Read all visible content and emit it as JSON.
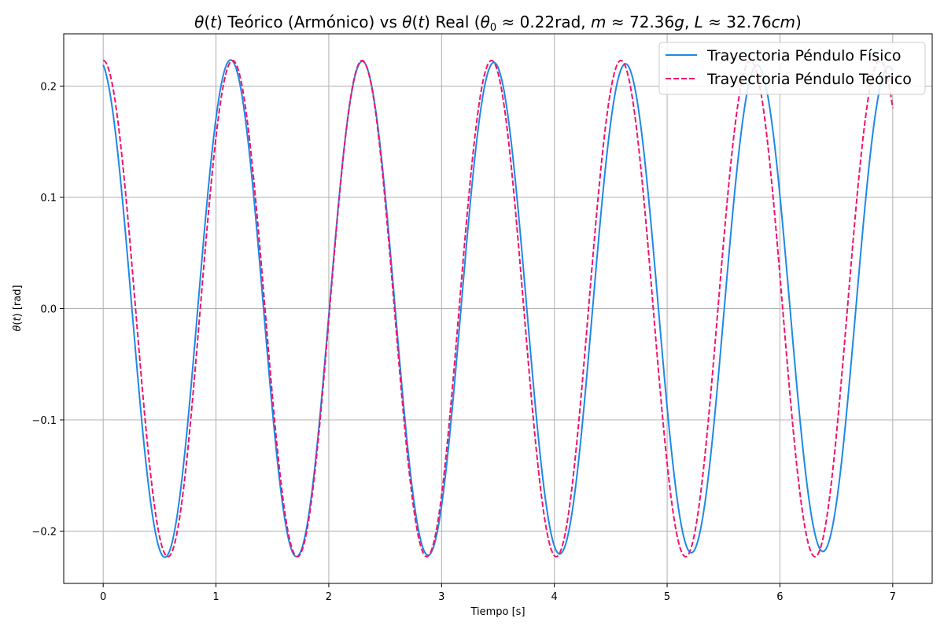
{
  "chart_data": {
    "type": "line",
    "title_parts": {
      "p1": "θ",
      "p2": "(",
      "p3": "t",
      "p4": ") Teórico (Armónico) vs ",
      "p5": "θ",
      "p6": "(",
      "p7": "t",
      "p8": ") Real (",
      "p9": "θ",
      "p10": "0",
      "p11": " ≈ 0.22rad, ",
      "p12": "m",
      "p13": " ≈ 72.36",
      "p14": "g",
      "p15": ", ",
      "p16": "L",
      "p17": " ≈ 32.76",
      "p18": "cm",
      "p19": ")"
    },
    "xlabel": "Tiempo [s]",
    "ylabel_parts": {
      "p1": "θ",
      "p2": "(",
      "p3": "t",
      "p4": ") [rad]"
    },
    "xlim": [
      -0.35,
      7.35
    ],
    "ylim": [
      -0.247,
      0.247
    ],
    "x_ticks": [
      0,
      1,
      2,
      3,
      4,
      5,
      6,
      7
    ],
    "x_tick_labels": [
      "0",
      "1",
      "2",
      "3",
      "4",
      "5",
      "6",
      "7"
    ],
    "y_ticks": [
      -0.2,
      -0.1,
      0.0,
      0.1,
      0.2
    ],
    "y_tick_labels": [
      "−0.2",
      "−0.1",
      "0.0",
      "0.1",
      "0.2"
    ],
    "grid": true,
    "legend_position": "top-right",
    "series": [
      {
        "name": "Trayectoria Péndulo Físico",
        "color": "#1f88e5",
        "style": "solid",
        "model": "damped_cosine",
        "amplitude": 0.2235,
        "period_s": 1.167,
        "t_max_peak_s": 1.13,
        "decay_per_s": 0.0045,
        "t_range": [
          0,
          7
        ]
      },
      {
        "name": "Trayectoria Péndulo Teórico",
        "color": "#f0146e",
        "style": "dashed",
        "model": "cosine",
        "amplitude": 0.223,
        "period_s": 1.1475,
        "t_max_peak_s": 0.0,
        "t_range": [
          0,
          7
        ]
      }
    ]
  }
}
